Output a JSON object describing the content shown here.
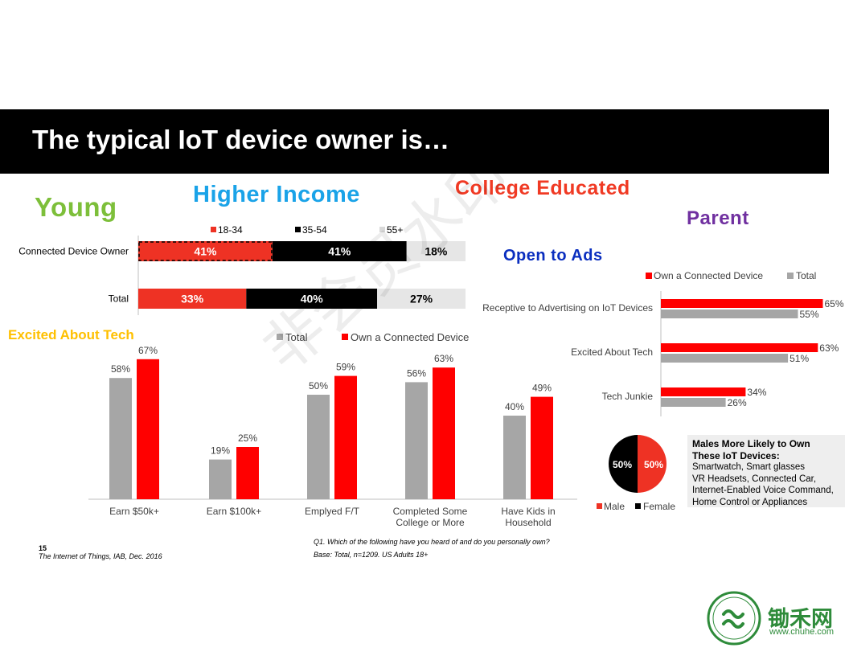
{
  "title": "The typical IoT device owner is…",
  "headings": {
    "young": "Young",
    "higher_income": "Higher Income",
    "college_educated": "College Educated",
    "parent": "Parent",
    "open_to_ads": "Open to Ads",
    "excited_about_tech": "Excited About Tech"
  },
  "colors": {
    "red": "#ff0000",
    "red_light": "#ee3224",
    "black": "#000000",
    "gray": "#a6a6a6",
    "light_gray": "#e6e6e6",
    "young": "#7dbf3a",
    "higher_income": "#1aa3e8",
    "college_educated": "#f03a24",
    "parent": "#7030a0",
    "open_to_ads": "#0a2ebf",
    "excited": "#ffc000"
  },
  "chart_data": [
    {
      "id": "age",
      "type": "bar",
      "orientation": "horizontal",
      "stacked": true,
      "categories": [
        "Connected Device Owner",
        "Total"
      ],
      "series": [
        {
          "name": "18-34",
          "values": [
            41,
            33
          ],
          "labels": [
            "41%",
            "33%"
          ]
        },
        {
          "name": "35-54",
          "values": [
            41,
            40
          ],
          "labels": [
            "41%",
            "40%"
          ]
        },
        {
          "name": "55+",
          "values": [
            18,
            27
          ],
          "labels": [
            "18%",
            "27%"
          ]
        }
      ],
      "legend": "top"
    },
    {
      "id": "demographics",
      "type": "bar",
      "categories": [
        "Earn $50k+",
        "Earn $100k+",
        "Emplyed F/T",
        "Completed Some College or More",
        "Have Kids in Household"
      ],
      "series": [
        {
          "name": "Total",
          "values": [
            58,
            19,
            50,
            56,
            40
          ],
          "labels": [
            "58%",
            "19%",
            "50%",
            "56%",
            "40%"
          ]
        },
        {
          "name": "Own a Connected Device",
          "values": [
            67,
            25,
            59,
            63,
            49
          ],
          "labels": [
            "67%",
            "25%",
            "59%",
            "63%",
            "49%"
          ]
        }
      ],
      "ylim": [
        0,
        100
      ],
      "legend": "top"
    },
    {
      "id": "ads",
      "type": "bar",
      "orientation": "horizontal",
      "categories": [
        "Receptive to Advertising on IoT Devices",
        "Excited About Tech",
        "Tech Junkie"
      ],
      "series": [
        {
          "name": "Own a Connected Device",
          "values": [
            65,
            63,
            34
          ],
          "labels": [
            "65%",
            "63%",
            "34%"
          ]
        },
        {
          "name": "Total",
          "values": [
            55,
            51,
            26
          ],
          "labels": [
            "55%",
            "51%",
            "26%"
          ]
        }
      ],
      "xlim": [
        0,
        100
      ],
      "legend": "top"
    },
    {
      "id": "gender",
      "type": "pie",
      "slices": [
        {
          "name": "Male",
          "value": 50,
          "label": "50%"
        },
        {
          "name": "Female",
          "value": 50,
          "label": "50%"
        }
      ],
      "legend": "bottom"
    }
  ],
  "note": {
    "title": "Males More Likely to Own These IoT Devices:",
    "lines": [
      "Smartwatch, Smart glasses",
      "VR Headsets, Connected Car,",
      "Internet-Enabled Voice Command,",
      "Home Control or Appliances"
    ]
  },
  "footer": {
    "page_number": "15",
    "source": "The Internet of Things, IAB, Dec. 2016",
    "question": "Q1.  Which of the following have you heard of and do you personally own?",
    "base": "Base: Total, n=1209.  US Adults 18+"
  },
  "watermark": "非会员水印",
  "logo": {
    "text_cn": "锄禾网",
    "url": "www.chuhe.com"
  }
}
